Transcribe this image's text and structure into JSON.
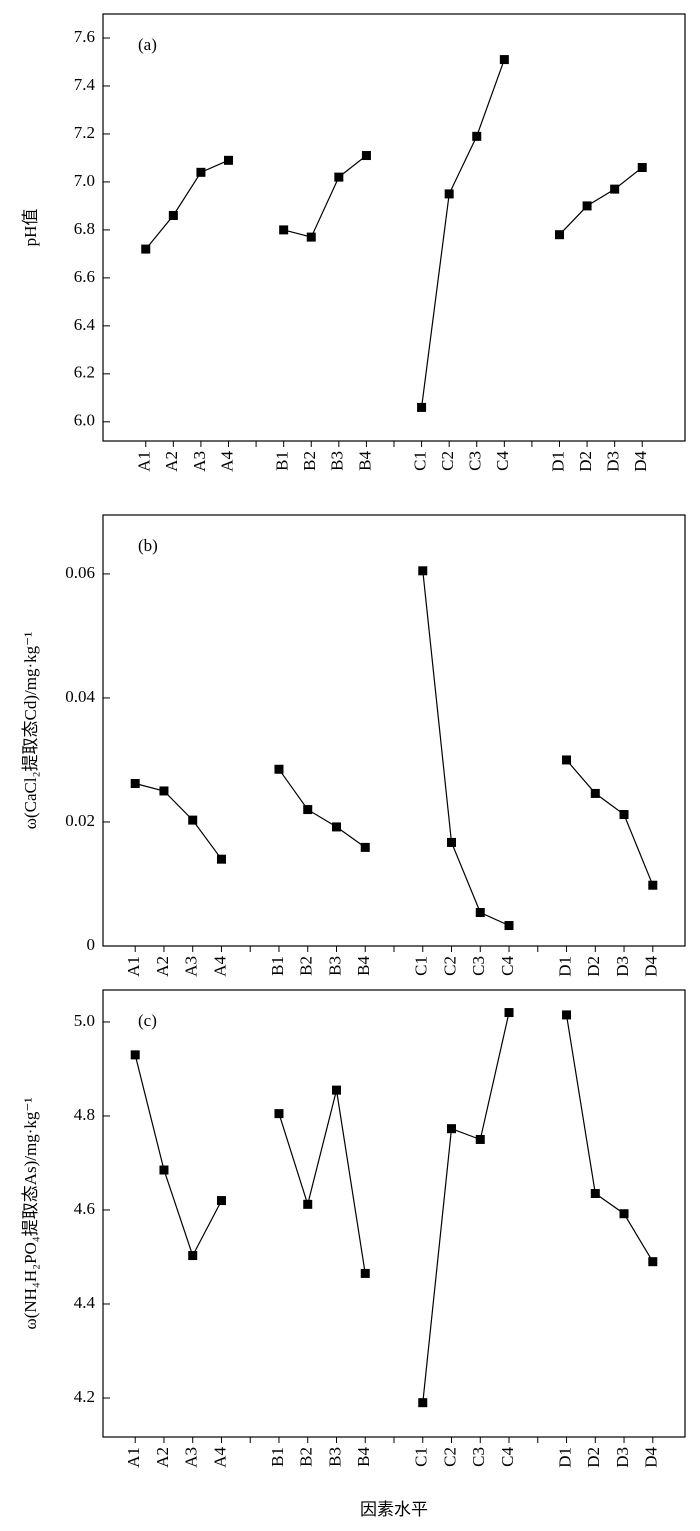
{
  "chart_data": [
    {
      "type": "line",
      "label": "(a)",
      "ylabel": "pH值",
      "categories": [
        "A1",
        "A2",
        "A3",
        "A4",
        null,
        "B1",
        "B2",
        "B3",
        "B4",
        null,
        "C1",
        "C2",
        "C3",
        "C4",
        null,
        "D1",
        "D2",
        "D3",
        "D4"
      ],
      "values": [
        6.72,
        6.86,
        7.04,
        7.09,
        null,
        6.8,
        6.77,
        7.02,
        7.11,
        null,
        6.06,
        6.95,
        7.19,
        7.51,
        null,
        6.78,
        6.9,
        6.97,
        7.06
      ],
      "color": "#000000",
      "ylim": [
        5.92,
        7.7
      ],
      "yticks": [
        {
          "value": 6.0,
          "label": "6.0"
        },
        6.2,
        6.4,
        6.6,
        6.8,
        {
          "value": 7.0,
          "label": "7.0"
        },
        7.2,
        7.4,
        7.6
      ]
    },
    {
      "type": "line",
      "label": "(b)",
      "ylabel": "ω(CaCl₂提取态Cd)/mg·kg⁻¹",
      "categories": [
        "A1",
        "A2",
        "A3",
        "A4",
        null,
        "B1",
        "B2",
        "B3",
        "B4",
        null,
        "C1",
        "C2",
        "C3",
        "C4",
        null,
        "D1",
        "D2",
        "D3",
        "D4"
      ],
      "values": [
        0.0262,
        0.025,
        0.0203,
        0.014,
        null,
        0.0285,
        0.022,
        0.0192,
        0.0159,
        null,
        0.0605,
        0.0167,
        0.0054,
        0.0033,
        null,
        0.03,
        0.0246,
        0.0212,
        0.0098
      ],
      "color": "#000000",
      "ylim": [
        0,
        0.0695
      ],
      "yticks": [
        0,
        0.02,
        0.04,
        0.06
      ]
    },
    {
      "type": "line",
      "label": "(c)",
      "ylabel": "ω(NH₄H₂PO₄提取态As)/mg·kg⁻¹",
      "xlabel": "因素水平",
      "categories": [
        "A1",
        "A2",
        "A3",
        "A4",
        null,
        "B1",
        "B2",
        "B3",
        "B4",
        null,
        "C1",
        "C2",
        "C3",
        "C4",
        null,
        "D1",
        "D2",
        "D3",
        "D4"
      ],
      "values": [
        4.93,
        4.685,
        4.503,
        4.62,
        null,
        4.805,
        4.612,
        4.855,
        4.465,
        null,
        4.19,
        4.773,
        4.75,
        5.02,
        null,
        5.015,
        4.635,
        4.592,
        4.49
      ],
      "color": "#000000",
      "ylim": [
        4.117,
        5.068
      ],
      "yticks": [
        4.2,
        4.4,
        4.6,
        4.8,
        {
          "value": 5.0,
          "label": "5.0"
        }
      ]
    }
  ]
}
